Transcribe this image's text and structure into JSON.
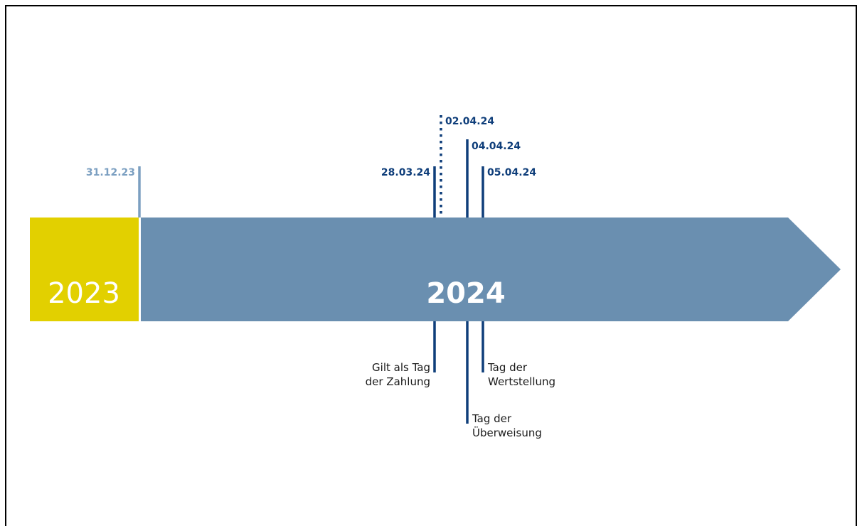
{
  "colors": {
    "frame": "#000000",
    "year_2023_fill": "#e2d000",
    "year_2024_fill": "#6a8fb0",
    "dark_blue": "#0f3e7a",
    "muted_blue": "#7b9fc1",
    "text": "#1a1a1a"
  },
  "timeline": {
    "year_2023": "2023",
    "year_2024": "2024",
    "year_end_date": "31.12.23",
    "events": [
      {
        "date": "28.03.24",
        "line_style": "solid"
      },
      {
        "date": "02.04.24",
        "line_style": "dotted"
      },
      {
        "date": "04.04.24",
        "line_style": "solid"
      },
      {
        "date": "05.04.24",
        "line_style": "solid"
      }
    ],
    "descriptions": {
      "payment_day": [
        "Gilt als Tag",
        "der Zahlung"
      ],
      "transfer_day": [
        "Tag der",
        "Überweisung"
      ],
      "value_date_day": [
        "Tag der",
        "Wertstellung"
      ]
    }
  }
}
